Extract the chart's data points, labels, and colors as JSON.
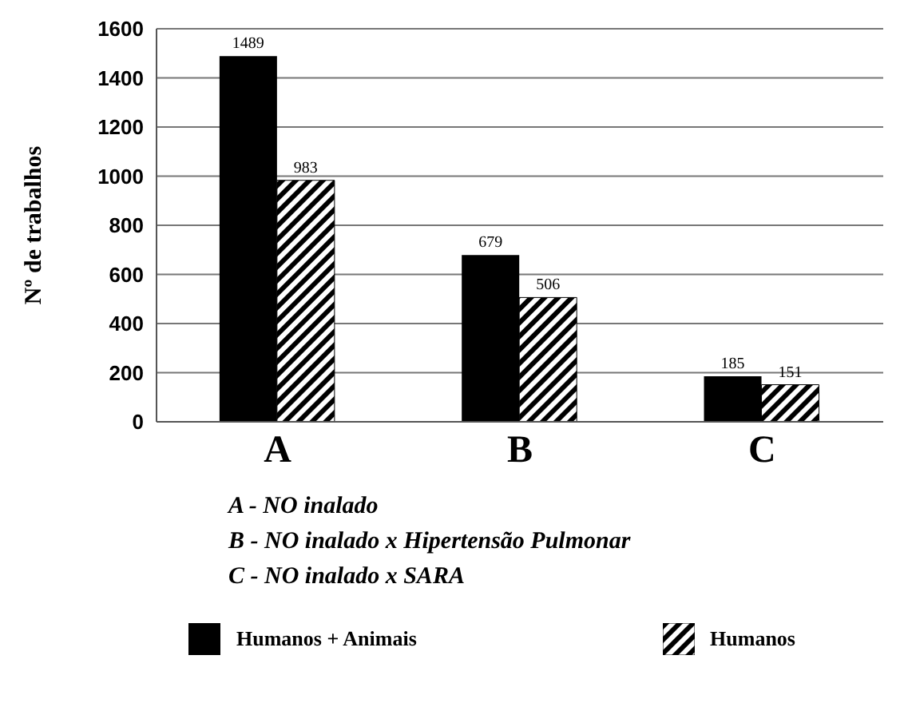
{
  "chart_data": {
    "type": "bar",
    "ylabel": "Nº de trabalhos",
    "categories": [
      "A",
      "B",
      "C"
    ],
    "series": [
      {
        "name": "Humanos + Animais",
        "color": "#000000",
        "values": [
          1489,
          679,
          185
        ]
      },
      {
        "name": "Humanos",
        "color": "#000000",
        "values": [
          983,
          506,
          151
        ]
      }
    ],
    "ylim": [
      0,
      1600
    ],
    "yticks": [
      0,
      200,
      400,
      600,
      800,
      1000,
      1200,
      1400,
      1600
    ],
    "grid": "y",
    "legend": "bottom",
    "data_labels": true,
    "annotations": [
      "A - NO inalado",
      "B - NO inalado x Hipertensão Pulmonar",
      "C - NO inalado x SARA"
    ]
  }
}
